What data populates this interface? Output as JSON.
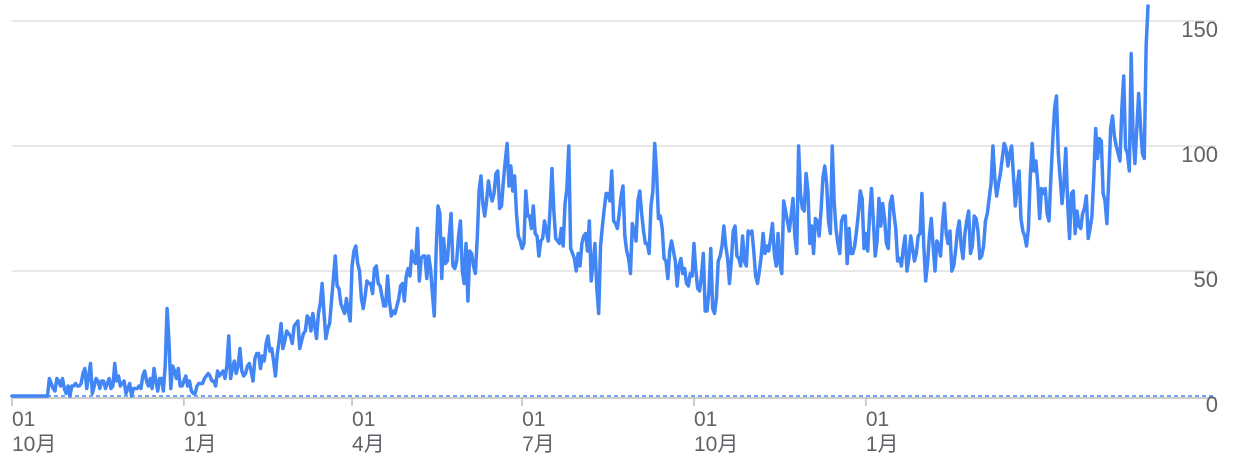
{
  "chart_data": {
    "type": "line",
    "title": "",
    "xlabel": "",
    "ylabel": "",
    "ylim": [
      0,
      150
    ],
    "y_ticks": [
      "0",
      "50",
      "100",
      "150"
    ],
    "y_tick_values": [
      0,
      50,
      100,
      150
    ],
    "x_ticks": [
      {
        "day": "01",
        "month": "10月",
        "index": 0
      },
      {
        "day": "01",
        "month": "1月",
        "index": 92
      },
      {
        "day": "01",
        "month": "4月",
        "index": 182
      },
      {
        "day": "01",
        "month": "7月",
        "index": 273
      },
      {
        "day": "01",
        "month": "10月",
        "index": 365
      },
      {
        "day": "01",
        "month": "1月",
        "index": 457
      }
    ],
    "grid": true,
    "legend": "none",
    "line_color": "#4285f4",
    "series": [
      {
        "values": [
          0,
          0,
          0,
          0,
          0,
          0,
          0,
          0,
          0,
          0,
          0,
          0,
          0,
          0,
          0,
          0,
          0,
          0,
          0,
          0,
          7,
          5,
          3,
          2,
          7,
          6,
          4,
          7,
          3,
          1,
          4,
          0,
          4,
          4,
          5,
          4,
          4,
          5,
          9,
          11,
          3,
          8,
          13,
          1,
          4,
          7,
          6,
          3,
          6,
          6,
          3,
          5,
          7,
          3,
          4,
          13,
          6,
          8,
          4,
          5,
          6,
          1,
          3,
          5,
          0,
          3,
          3,
          3,
          4,
          3,
          8,
          10,
          6,
          4,
          7,
          3,
          11,
          6,
          2,
          7,
          7,
          2,
          12,
          35,
          22,
          3,
          12,
          10,
          7,
          11,
          4,
          4,
          6,
          8,
          4,
          6,
          2,
          1,
          1,
          4,
          5,
          5,
          5,
          7,
          8,
          9,
          8,
          6,
          6,
          4,
          10,
          8,
          9,
          10,
          7,
          12,
          24,
          7,
          11,
          14,
          9,
          12,
          19,
          10,
          8,
          9,
          12,
          13,
          10,
          6,
          15,
          17,
          17,
          11,
          16,
          14,
          21,
          24,
          18,
          19,
          14,
          8,
          17,
          22,
          29,
          19,
          22,
          26,
          25,
          24,
          21,
          28,
          29,
          30,
          19,
          22,
          25,
          26,
          32,
          31,
          26,
          33,
          28,
          23,
          33,
          37,
          45,
          33,
          23,
          27,
          29,
          38,
          47,
          56,
          44,
          43,
          37,
          35,
          33,
          39,
          34,
          30,
          52,
          58,
          60,
          53,
          50,
          39,
          35,
          40,
          46,
          45,
          45,
          41,
          51,
          52,
          45,
          44,
          40,
          36,
          36,
          48,
          38,
          32,
          34,
          33,
          36,
          39,
          44,
          45,
          38,
          48,
          51,
          48,
          58,
          54,
          53,
          67,
          46,
          55,
          56,
          56,
          47,
          56,
          51,
          41,
          32,
          58,
          76,
          73,
          47,
          63,
          53,
          54,
          64,
          73,
          52,
          51,
          54,
          64,
          70,
          50,
          45,
          61,
          38,
          58,
          57,
          52,
          49,
          63,
          82,
          88,
          77,
          72,
          78,
          86,
          81,
          78,
          81,
          89,
          90,
          75,
          76,
          86,
          94,
          101,
          84,
          92,
          82,
          88,
          73,
          64,
          62,
          59,
          61,
          82,
          72,
          72,
          67,
          76,
          65,
          64,
          56,
          62,
          63,
          70,
          66,
          62,
          75,
          91,
          74,
          63,
          62,
          61,
          67,
          60,
          77,
          83,
          100,
          59,
          57,
          55,
          50,
          57,
          52,
          61,
          64,
          65,
          58,
          70,
          46,
          53,
          61,
          43,
          33,
          60,
          68,
          75,
          81,
          81,
          78,
          90,
          70,
          69,
          67,
          73,
          80,
          84,
          64,
          58,
          55,
          49,
          69,
          66,
          62,
          78,
          82,
          73,
          66,
          61,
          61,
          57,
          76,
          82,
          101,
          89,
          71,
          72,
          67,
          55,
          54,
          47,
          58,
          62,
          58,
          54,
          44,
          52,
          55,
          49,
          51,
          45,
          44,
          49,
          48,
          61,
          50,
          43,
          42,
          48,
          57,
          34,
          34,
          42,
          59,
          35,
          33,
          39,
          54,
          56,
          60,
          68,
          60,
          55,
          45,
          54,
          66,
          68,
          56,
          55,
          52,
          64,
          54,
          52,
          66,
          65,
          66,
          58,
          48,
          45,
          50,
          56,
          65,
          57,
          60,
          58,
          63,
          69,
          57,
          52,
          65,
          53,
          49,
          78,
          74,
          70,
          66,
          72,
          79,
          64,
          57,
          100,
          81,
          75,
          74,
          89,
          82,
          61,
          68,
          57,
          71,
          70,
          64,
          74,
          87,
          92,
          85,
          70,
          65,
          100,
          78,
          67,
          61,
          57,
          70,
          72,
          72,
          53,
          67,
          57,
          57,
          60,
          66,
          73,
          82,
          79,
          59,
          65,
          58,
          73,
          83,
          70,
          56,
          62,
          79,
          68,
          77,
          71,
          61,
          59,
          77,
          80,
          73,
          67,
          54,
          55,
          52,
          59,
          64,
          50,
          55,
          64,
          59,
          54,
          57,
          64,
          65,
          81,
          60,
          46,
          53,
          64,
          71,
          60,
          50,
          62,
          60,
          56,
          69,
          77,
          65,
          61,
          66,
          50,
          52,
          58,
          66,
          70,
          60,
          55,
          65,
          70,
          74,
          57,
          60,
          72,
          71,
          66,
          55,
          56,
          60,
          70,
          73,
          79,
          85,
          100,
          87,
          80,
          85,
          89,
          95,
          101,
          99,
          92,
          97,
          100,
          88,
          76,
          84,
          90,
          71,
          66,
          64,
          60,
          67,
          88,
          101,
          90,
          94,
          85,
          71,
          83,
          81,
          83,
          73,
          70,
          87,
          102,
          115,
          120,
          97,
          87,
          77,
          85,
          99,
          77,
          63,
          81,
          82,
          65,
          74,
          68,
          67,
          73,
          75,
          80,
          63,
          67,
          72,
          88,
          107,
          95,
          103,
          102,
          81,
          78,
          69,
          87,
          107,
          112,
          104,
          100,
          97,
          94,
          115,
          128,
          99,
          97,
          90,
          137,
          104,
          93,
          107,
          121,
          108,
          97,
          95,
          140,
          156
        ]
      }
    ]
  }
}
